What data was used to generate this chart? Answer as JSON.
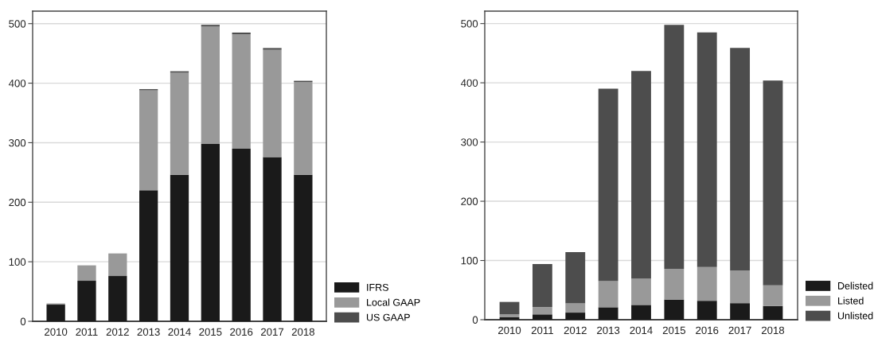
{
  "chart_data": [
    {
      "type": "bar",
      "stacked": true,
      "categories": [
        "2010",
        "2011",
        "2012",
        "2013",
        "2014",
        "2015",
        "2016",
        "2017",
        "2018"
      ],
      "series": [
        {
          "name": "IFRS",
          "color": "#1a1a1a",
          "values": [
            28,
            68,
            76,
            220,
            246,
            298,
            290,
            276,
            246
          ]
        },
        {
          "name": "Local GAAP",
          "color": "#999999",
          "values": [
            2,
            26,
            38,
            168,
            172,
            197,
            192,
            180,
            156
          ]
        },
        {
          "name": "US GAAP",
          "color": "#4d4d4d",
          "values": [
            0,
            0,
            0,
            2,
            2,
            3,
            3,
            3,
            2
          ]
        }
      ],
      "ylim": [
        0,
        521
      ],
      "yticks": [
        0,
        100,
        200,
        300,
        400,
        500
      ],
      "grid": "y",
      "legend": "bottom right"
    },
    {
      "type": "bar",
      "stacked": true,
      "categories": [
        "2010",
        "2011",
        "2012",
        "2013",
        "2014",
        "2015",
        "2016",
        "2017",
        "2018"
      ],
      "series": [
        {
          "name": "Delisted",
          "color": "#1a1a1a",
          "values": [
            4,
            9,
            12,
            21,
            25,
            34,
            32,
            28,
            23
          ]
        },
        {
          "name": "Listed",
          "color": "#999999",
          "values": [
            5,
            12,
            16,
            44,
            44,
            52,
            57,
            55,
            35
          ]
        },
        {
          "name": "Unlisted",
          "color": "#4d4d4d",
          "values": [
            21,
            73,
            86,
            325,
            351,
            412,
            396,
            376,
            346
          ]
        }
      ],
      "ylim": [
        0,
        521
      ],
      "yticks": [
        0,
        100,
        200,
        300,
        400,
        500
      ],
      "grid": "y",
      "legend": "bottom right"
    }
  ]
}
